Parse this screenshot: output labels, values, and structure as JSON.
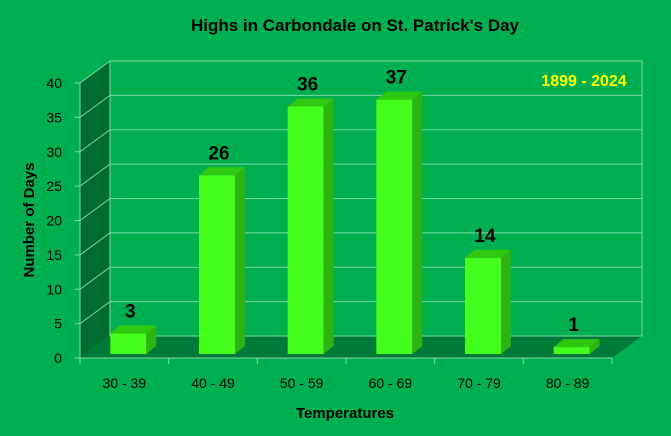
{
  "chart_data": {
    "type": "bar",
    "title": "Highs in Carbondale on St. Patrick's Day",
    "annotation": "1899 - 2024",
    "xlabel": "Temperatures",
    "ylabel": "Number of Days",
    "categories": [
      "30 - 39",
      "40 - 49",
      "50 - 59",
      "60 - 69",
      "70 - 79",
      "80 - 89"
    ],
    "values": [
      3,
      26,
      36,
      37,
      14,
      1
    ],
    "ylim": [
      0,
      40
    ],
    "yticks": [
      0,
      5,
      10,
      15,
      20,
      25,
      30,
      35,
      40
    ],
    "grid": true,
    "legend": "none",
    "colors": {
      "background": "#00B050",
      "bar_front": "#44FF1C",
      "bar_side": "#2FB312",
      "bar_top": "#30C810",
      "back_wall": "#00B050",
      "side_wall": "#006C32",
      "floor": "#007A38",
      "gridline": "#7FD9A6",
      "annotation": "#FFFF00",
      "text": "#000000"
    }
  }
}
